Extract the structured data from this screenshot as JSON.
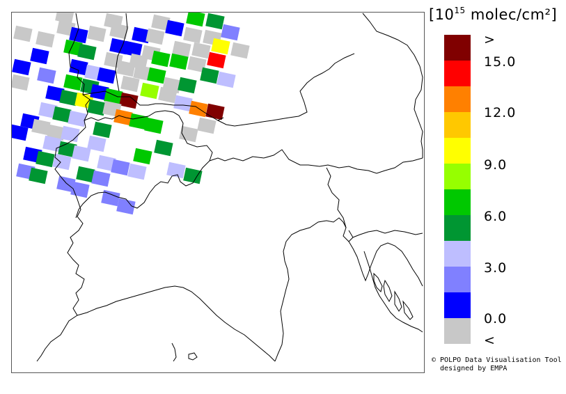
{
  "legend": {
    "unit_prefix": "[10",
    "unit_exp": "15",
    "unit_suffix": " molec/cm²]",
    "colors": [
      "#800000",
      "#ff0000",
      "#ff8000",
      "#ffc800",
      "#ffff00",
      "#96ff00",
      "#00c800",
      "#009632",
      "#bebeff",
      "#8080ff",
      "#0000ff",
      "#c8c8c8"
    ],
    "ticks": [
      ">",
      "15.0",
      "12.0",
      "9.0",
      "6.0",
      "3.0",
      "0.0",
      "<"
    ]
  },
  "credit": {
    "line1": "© POLPO Data Visualisation Tool",
    "line2": "  designed by EMPA"
  },
  "map": {
    "cell_colors": {
      "dr": "#800000",
      "r": "#ff0000",
      "o": "#ff8000",
      "y": "#ffff00",
      "yg": "#96ff00",
      "g": "#00c800",
      "dg": "#009632",
      "lb": "#bebeff",
      "mb": "#8080ff",
      "b": "#0000ff",
      "gr": "#c8c8c8"
    }
  }
}
